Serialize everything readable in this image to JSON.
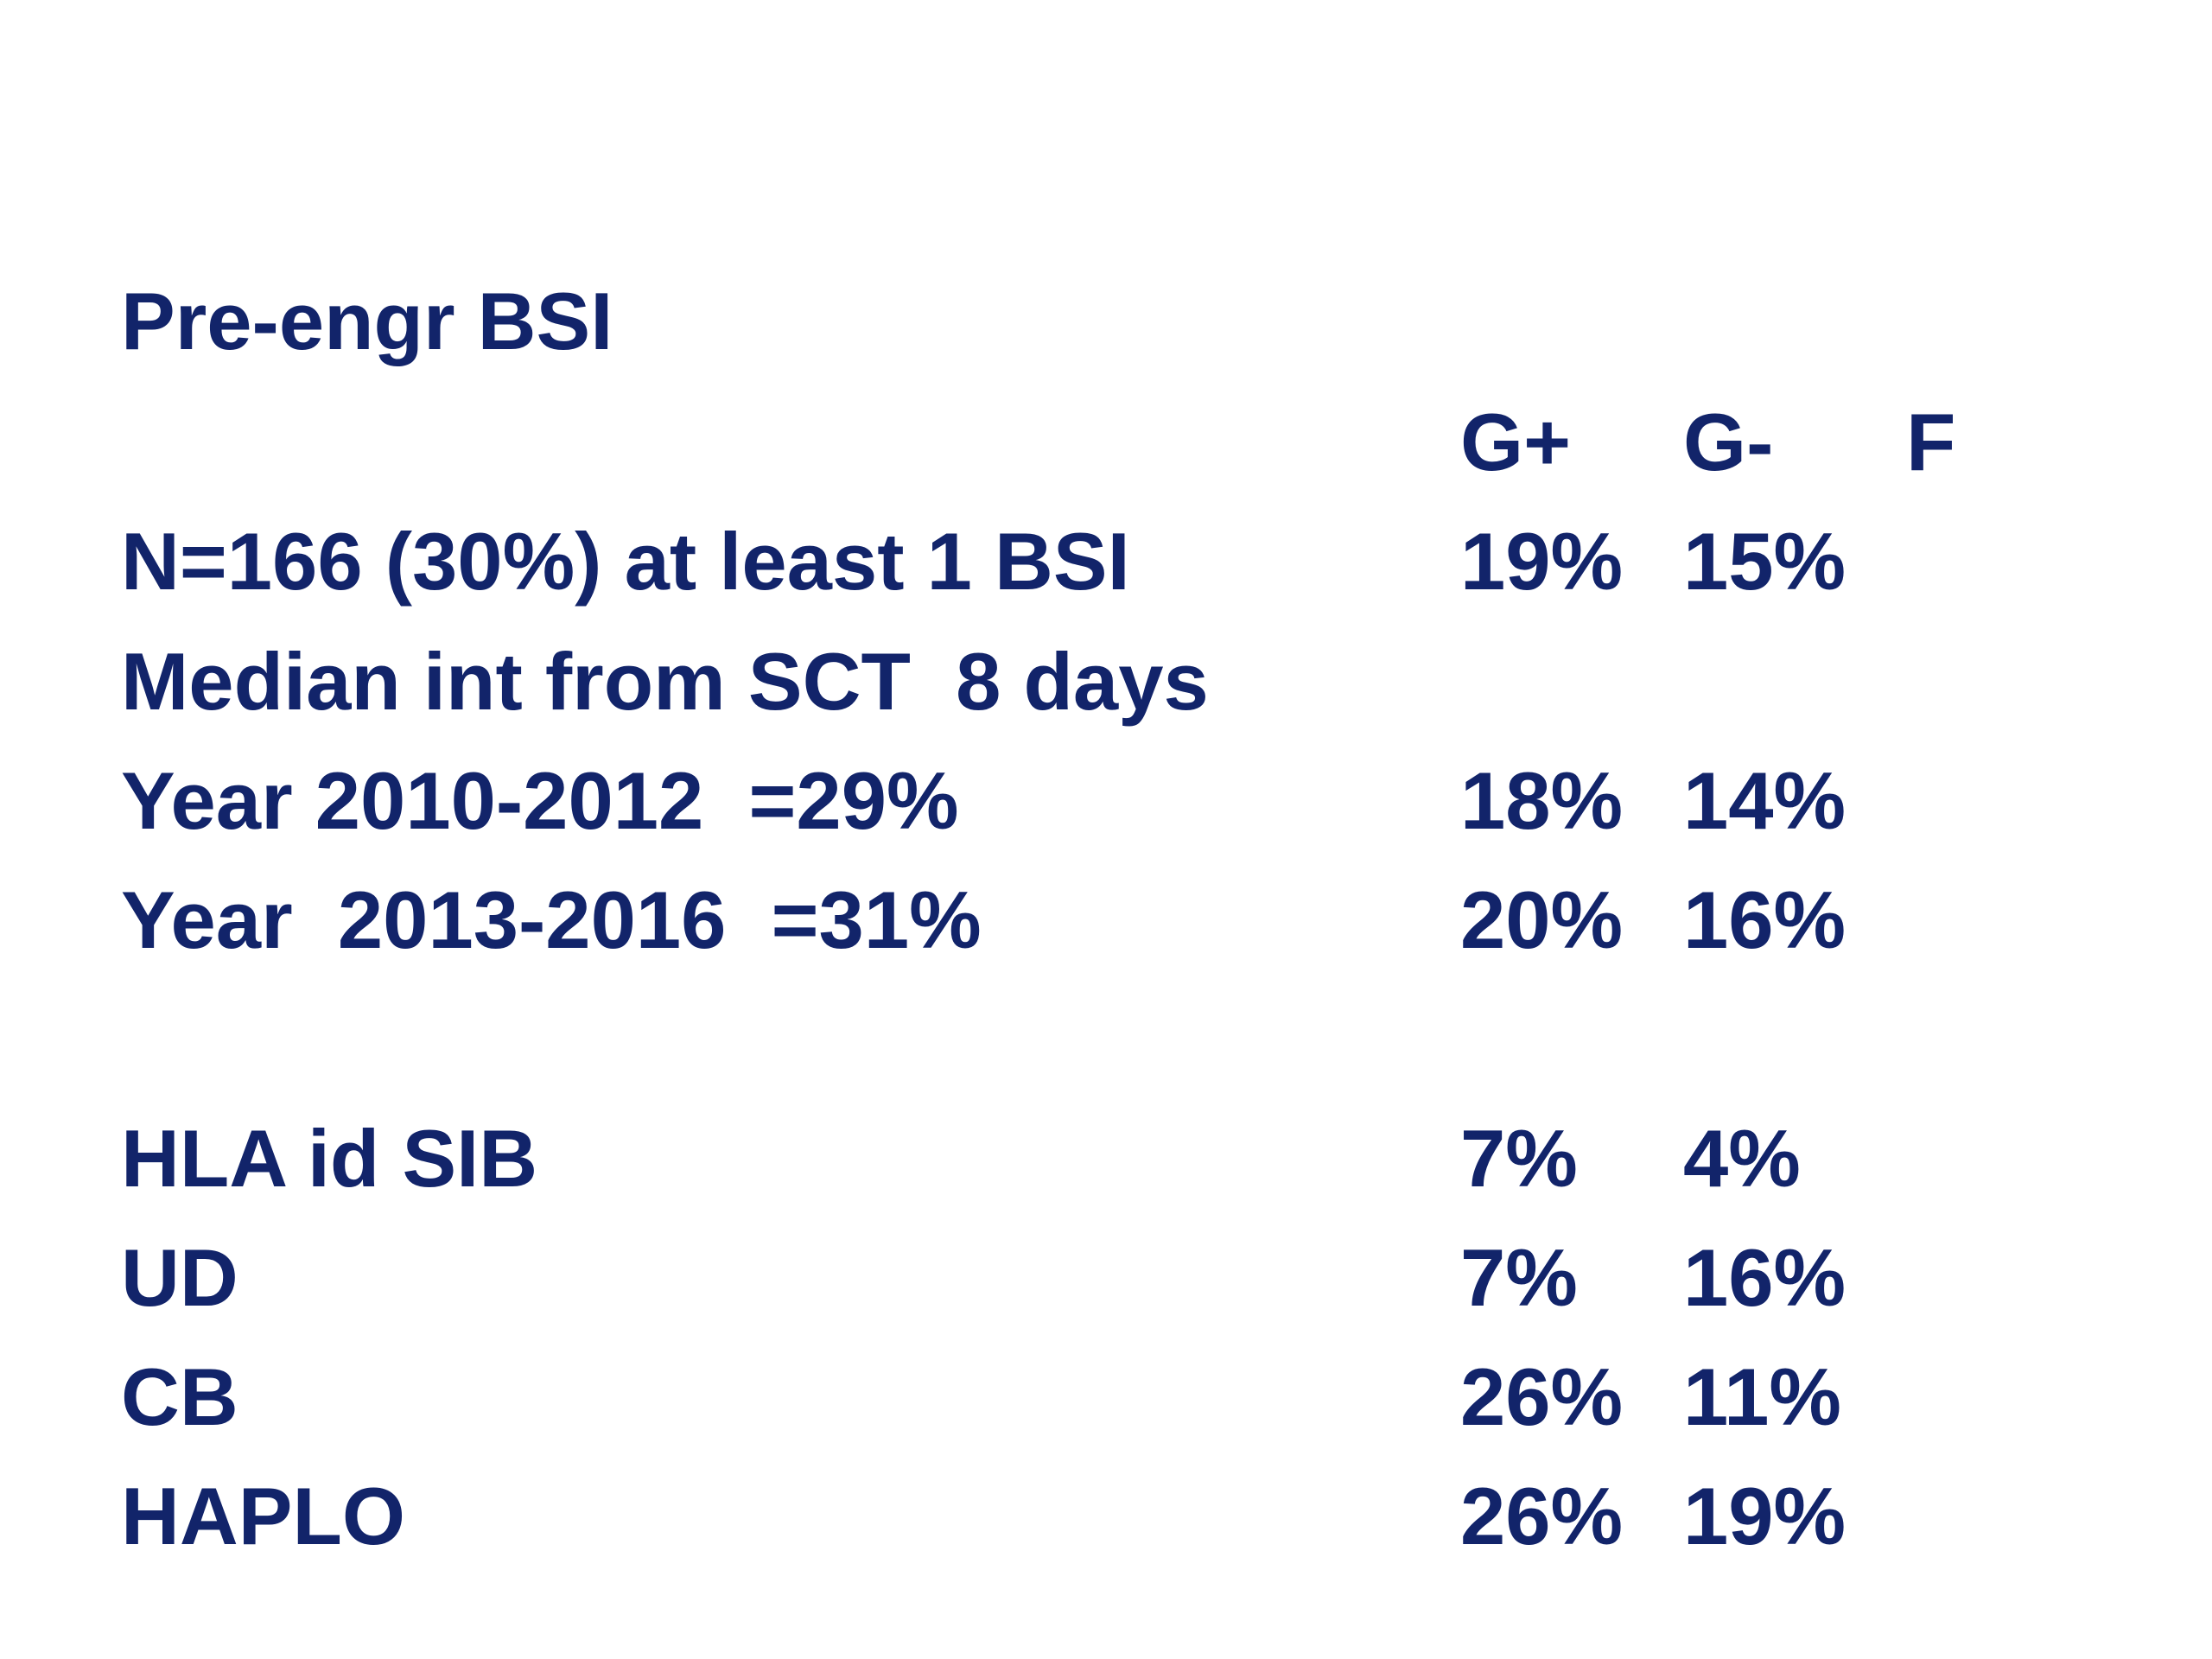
{
  "heading": "Pre-engr BSI",
  "columns": [
    "G+",
    "G-",
    "F"
  ],
  "rows": [
    {
      "label": "N=166 (30%) at least 1 BSI",
      "g_plus": "19%",
      "g_minus": "15%"
    },
    {
      "label": "Median int from SCT  8 days",
      "g_plus": "",
      "g_minus": ""
    },
    {
      "label": "Year 2010-2012  =29%",
      "g_plus": "18%",
      "g_minus": "14%"
    },
    {
      "label": "Year  2013-2016  =31%",
      "g_plus": "20%",
      "g_minus": "16%"
    },
    {
      "label": "HLA id SIB",
      "g_plus": "7%",
      "g_minus": "4%"
    },
    {
      "label": "UD",
      "g_plus": "7%",
      "g_minus": "16%"
    },
    {
      "label": "CB",
      "g_plus": "26%",
      "g_minus": "11%"
    },
    {
      "label": "HAPLO",
      "g_plus": "26%",
      "g_minus": "19%"
    }
  ],
  "colors": {
    "text": "#12246a",
    "background": "#ffffff"
  }
}
